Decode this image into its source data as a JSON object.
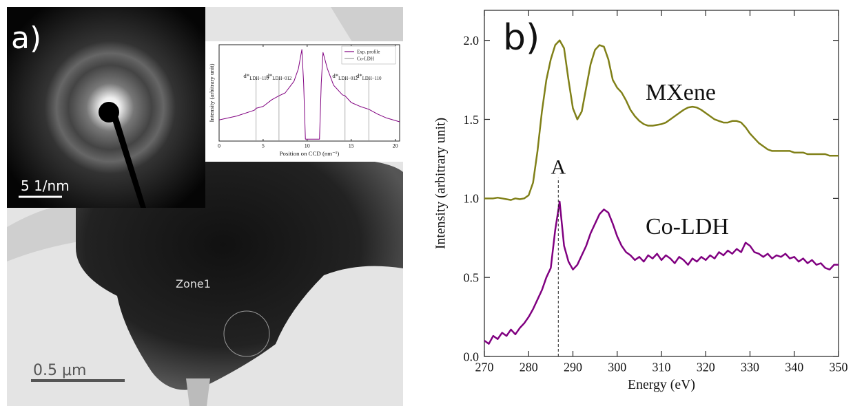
{
  "panel_a": {
    "label": "a)",
    "diffraction_scale_bar": "5 1/nm",
    "image_scale_bar": "0.5 μm",
    "zone_label": "Zone1"
  },
  "chart_data": [
    {
      "type": "line",
      "xlabel": "Position on CCD (nm⁻¹)",
      "ylabel": "Intensity (arbitrary unit)",
      "x": [
        0,
        2,
        4,
        4.2,
        5,
        6,
        6.8,
        7.5,
        8.5,
        9,
        9.4,
        9.6,
        9.8,
        10.5,
        11,
        11.4,
        11.6,
        11.8,
        12.3,
        13,
        14,
        14.3,
        15,
        16,
        17,
        18,
        19,
        20.5
      ],
      "series": [
        {
          "name": "Exp. profile",
          "color": "#800080",
          "values": [
            2.2,
            2.6,
            3.2,
            3.4,
            3.6,
            4.3,
            4.7,
            5.0,
            6.2,
            7.5,
            9.5,
            6,
            0.2,
            0.2,
            0.2,
            0.2,
            6,
            9.2,
            7.5,
            5.8,
            4.8,
            4.7,
            4.0,
            3.6,
            3.3,
            2.8,
            2.4,
            2.0
          ]
        }
      ],
      "reference_lines": {
        "name": "Co-LDH",
        "color": "#999999",
        "lines": [
          {
            "x": 4.2,
            "label": "d*",
            "sub": "LDH−110"
          },
          {
            "x": 6.8,
            "label": "d*",
            "sub": "LDH−012"
          },
          {
            "x": 14.3,
            "label": "d*",
            "sub": "LDH−012"
          },
          {
            "x": 17.0,
            "label": "d*",
            "sub": "LDH−110"
          }
        ]
      },
      "xlim": [
        0,
        20.5
      ],
      "ylim": [
        0,
        10
      ],
      "xticks": [
        0,
        5,
        10,
        15,
        20
      ]
    },
    {
      "type": "line",
      "panel_label": "b)",
      "xlabel": "Energy (eV)",
      "ylabel": "Intensity (arbitrary unit)",
      "x": [
        270,
        271,
        272,
        273,
        274,
        275,
        276,
        277,
        278,
        279,
        280,
        281,
        282,
        283,
        284,
        285,
        286,
        287,
        288,
        289,
        290,
        291,
        292,
        293,
        294,
        295,
        296,
        297,
        298,
        299,
        300,
        301,
        302,
        303,
        304,
        305,
        306,
        307,
        308,
        309,
        310,
        311,
        312,
        313,
        314,
        315,
        316,
        317,
        318,
        319,
        320,
        321,
        322,
        323,
        324,
        325,
        326,
        327,
        328,
        329,
        330,
        331,
        332,
        333,
        334,
        335,
        336,
        337,
        338,
        339,
        340,
        341,
        342,
        343,
        344,
        345,
        346,
        347,
        348,
        349,
        350
      ],
      "series": [
        {
          "name": "MXene",
          "color": "#808018",
          "values": [
            1.0,
            1.0,
            1.0,
            1.005,
            1.0,
            0.995,
            0.99,
            1.0,
            0.995,
            1.0,
            1.02,
            1.1,
            1.3,
            1.55,
            1.75,
            1.88,
            1.97,
            2.0,
            1.95,
            1.75,
            1.57,
            1.5,
            1.55,
            1.7,
            1.85,
            1.94,
            1.97,
            1.96,
            1.88,
            1.75,
            1.7,
            1.67,
            1.62,
            1.56,
            1.52,
            1.49,
            1.47,
            1.46,
            1.46,
            1.465,
            1.47,
            1.48,
            1.5,
            1.52,
            1.54,
            1.56,
            1.575,
            1.58,
            1.575,
            1.56,
            1.54,
            1.52,
            1.5,
            1.49,
            1.48,
            1.48,
            1.49,
            1.49,
            1.48,
            1.45,
            1.41,
            1.38,
            1.35,
            1.33,
            1.31,
            1.3,
            1.3,
            1.3,
            1.3,
            1.3,
            1.29,
            1.29,
            1.29,
            1.28,
            1.28,
            1.28,
            1.28,
            1.28,
            1.27,
            1.27,
            1.27
          ]
        },
        {
          "name": "Co-LDH",
          "color": "#800080",
          "values": [
            0.1,
            0.08,
            0.13,
            0.11,
            0.15,
            0.13,
            0.17,
            0.14,
            0.18,
            0.21,
            0.25,
            0.3,
            0.36,
            0.42,
            0.5,
            0.56,
            0.8,
            0.98,
            0.7,
            0.6,
            0.55,
            0.58,
            0.64,
            0.7,
            0.78,
            0.84,
            0.9,
            0.93,
            0.91,
            0.84,
            0.76,
            0.7,
            0.66,
            0.64,
            0.61,
            0.63,
            0.6,
            0.64,
            0.62,
            0.65,
            0.61,
            0.64,
            0.62,
            0.59,
            0.63,
            0.61,
            0.58,
            0.62,
            0.6,
            0.63,
            0.61,
            0.64,
            0.62,
            0.66,
            0.64,
            0.67,
            0.65,
            0.68,
            0.66,
            0.72,
            0.7,
            0.66,
            0.65,
            0.63,
            0.65,
            0.62,
            0.64,
            0.63,
            0.65,
            0.62,
            0.63,
            0.6,
            0.62,
            0.59,
            0.61,
            0.58,
            0.59,
            0.56,
            0.55,
            0.58,
            0.58
          ]
        }
      ],
      "annotation": {
        "text": "A",
        "x": 286.7,
        "y": 1.13
      },
      "xlim": [
        270,
        350
      ],
      "ylim": [
        0,
        2.19
      ],
      "xticks": [
        270,
        280,
        290,
        300,
        310,
        320,
        330,
        340,
        350
      ],
      "yticks": [
        {
          "value": 0,
          "label": "0.0"
        },
        0.5,
        {
          "value": 1,
          "label": "1.0"
        },
        1.5,
        {
          "value": 2,
          "label": "2.0"
        }
      ]
    }
  ]
}
